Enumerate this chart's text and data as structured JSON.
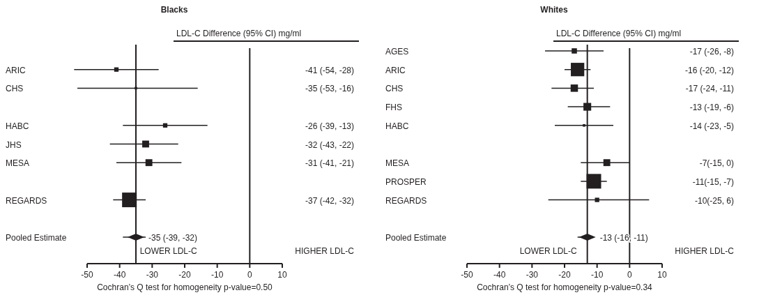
{
  "chart_data": [
    {
      "type": "scatter",
      "title": "Blacks",
      "xlabel": "Cochran’s Q test for homogeneity p-value=0.50",
      "orientation": "horizontal",
      "categories": [
        "ARIC",
        "CHS",
        null,
        "HABC",
        "JHS",
        "MESA",
        null,
        "REGARDS",
        null,
        "Pooled Estimate"
      ],
      "xlim": [
        -50,
        10
      ],
      "xticks": [
        -50,
        -40,
        -30,
        -20,
        -10,
        0,
        10
      ],
      "annotations": [
        "LDL-C Difference (95% CI) mg/ml",
        "LOWER LDL-C",
        "HIGHER LDL-C"
      ],
      "ref_lines": [
        {
          "axis": "x",
          "value": 0
        },
        {
          "axis": "x",
          "value": -35
        }
      ],
      "series": [
        {
          "type": "bubble",
          "marker": "square",
          "color": "#231f20",
          "values": [
            -41,
            -35,
            null,
            -26,
            -32,
            -31,
            null,
            -37,
            null,
            null
          ],
          "errors": [
            [
              -54,
              -28
            ],
            [
              -53,
              -16
            ],
            null,
            [
              -39,
              -13
            ],
            [
              -43,
              -22
            ],
            [
              -41,
              -21
            ],
            null,
            [
              -42,
              -32
            ],
            null,
            null
          ],
          "sizes": [
            0.09,
            0.03,
            null,
            0.09,
            0.22,
            0.22,
            null,
            1,
            null,
            null
          ],
          "value_labels": [
            "-41 (-54, -28)",
            "-35 (-53, -16)",
            null,
            "-26 (-39, -13)",
            "-32 (-43, -22)",
            "-31 (-41, -21)",
            null,
            "-37 (-42, -32)",
            null,
            null
          ]
        },
        {
          "marker": "diamond",
          "color": "#231f20",
          "values": [
            null,
            null,
            null,
            null,
            null,
            null,
            null,
            null,
            null,
            -35
          ],
          "errors": [
            null,
            null,
            null,
            null,
            null,
            null,
            null,
            null,
            null,
            [
              -39,
              -32
            ]
          ],
          "value_labels": [
            null,
            null,
            null,
            null,
            null,
            null,
            null,
            null,
            null,
            "-35 (-39, -32)"
          ]
        }
      ]
    },
    {
      "type": "scatter",
      "title": "Whites",
      "xlabel": "Cochran’s Q test for homogeneity p-value=0.34",
      "orientation": "horizontal",
      "categories": [
        "AGES",
        "ARIC",
        "CHS",
        "FHS",
        "HABC",
        null,
        "MESA",
        "PROSPER",
        "REGARDS",
        null,
        "Pooled Estimate"
      ],
      "xlim": [
        -50,
        10
      ],
      "xticks": [
        -50,
        -40,
        -30,
        -20,
        -10,
        0,
        10
      ],
      "annotations": [
        "LDL-C Difference (95% CI) mg/ml",
        "LOWER LDL-C",
        "HIGHER LDL-C"
      ],
      "ref_lines": [
        {
          "axis": "x",
          "value": 0
        },
        {
          "axis": "x",
          "value": -13
        }
      ],
      "series": [
        {
          "type": "bubble",
          "marker": "square",
          "color": "#231f20",
          "values": [
            -17,
            -16,
            -17,
            -13,
            -14,
            null,
            -7,
            -11,
            -10,
            null,
            null
          ],
          "errors": [
            [
              -26,
              -8
            ],
            [
              -20,
              -12
            ],
            [
              -24,
              -11
            ],
            [
              -19,
              -6
            ],
            [
              -23,
              -5
            ],
            null,
            [
              -15,
              0
            ],
            [
              -15,
              -7
            ],
            [
              -25,
              6
            ],
            null,
            null
          ],
          "sizes": [
            0.13,
            0.84,
            0.25,
            0.28,
            0.03,
            null,
            0.22,
            1,
            0.09,
            null,
            null
          ],
          "value_labels": [
            "-17 (-26, -8)",
            "-16 (-20, -12)",
            "-17 (-24, -11)",
            "-13 (-19, -6)",
            "-14 (-23, -5)",
            null,
            "-7(-15, 0)",
            "-11(-15, -7)",
            "-10(-25, 6)",
            null,
            null
          ]
        },
        {
          "marker": "diamond",
          "color": "#231f20",
          "values": [
            null,
            null,
            null,
            null,
            null,
            null,
            null,
            null,
            null,
            null,
            -13
          ],
          "errors": [
            null,
            null,
            null,
            null,
            null,
            null,
            null,
            null,
            null,
            null,
            [
              -16,
              -11
            ]
          ],
          "value_labels": [
            null,
            null,
            null,
            null,
            null,
            null,
            null,
            null,
            null,
            null,
            "-13 (-16, -11)"
          ]
        }
      ]
    }
  ]
}
